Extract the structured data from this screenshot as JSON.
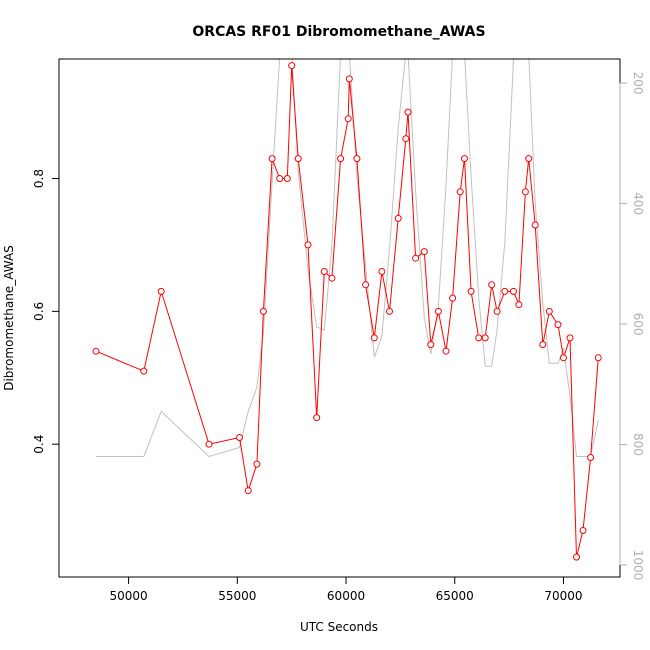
{
  "chart_data": {
    "type": "line",
    "title": "ORCAS RF01 Dibromomethane_AWAS",
    "xlabel": "UTC Seconds",
    "ylabel": "Dibromomethane_AWAS",
    "xlim": [
      46800,
      72600
    ],
    "ylim": [
      0.2,
      0.98
    ],
    "y2lim": [
      160,
      1020
    ],
    "y2_reversed": true,
    "x_ticks": [
      50000,
      55000,
      60000,
      65000,
      70000
    ],
    "y_ticks": [
      0.4,
      0.6,
      0.8
    ],
    "y2_ticks": [
      200,
      400,
      600,
      800,
      1000
    ],
    "colors": {
      "primary": "#ff0000",
      "secondary": "#c0c0c0"
    },
    "series": [
      {
        "color": "#ff0000",
        "marker": "open-circle",
        "points": [
          [
            48500,
            0.54
          ],
          [
            50700,
            0.51
          ],
          [
            51500,
            0.63
          ],
          [
            53700,
            0.4
          ],
          [
            55100,
            0.41
          ],
          [
            55500,
            0.33
          ],
          [
            55900,
            0.37
          ],
          [
            56200,
            0.6
          ],
          [
            56600,
            0.83
          ],
          [
            56950,
            0.8
          ],
          [
            57300,
            0.8
          ],
          [
            57500,
            0.97
          ],
          [
            57800,
            0.83
          ],
          [
            58250,
            0.7
          ],
          [
            58650,
            0.44
          ],
          [
            59000,
            0.66
          ],
          [
            59350,
            0.65
          ],
          [
            59750,
            0.83
          ],
          [
            60100,
            0.89
          ],
          [
            60150,
            0.95
          ],
          [
            60500,
            0.83
          ],
          [
            60900,
            0.64
          ],
          [
            61300,
            0.56
          ],
          [
            61650,
            0.66
          ],
          [
            62000,
            0.6
          ],
          [
            62400,
            0.74
          ],
          [
            62750,
            0.86
          ],
          [
            62850,
            0.9
          ],
          [
            63200,
            0.68
          ],
          [
            63600,
            0.69
          ],
          [
            63900,
            0.55
          ],
          [
            64250,
            0.6
          ],
          [
            64600,
            0.54
          ],
          [
            64900,
            0.62
          ],
          [
            65250,
            0.78
          ],
          [
            65450,
            0.83
          ],
          [
            65750,
            0.63
          ],
          [
            66100,
            0.56
          ],
          [
            66400,
            0.56
          ],
          [
            66700,
            0.64
          ],
          [
            66950,
            0.6
          ],
          [
            67300,
            0.63
          ],
          [
            67700,
            0.63
          ],
          [
            67950,
            0.61
          ],
          [
            68250,
            0.78
          ],
          [
            68400,
            0.83
          ],
          [
            68700,
            0.73
          ],
          [
            69050,
            0.55
          ],
          [
            69350,
            0.6
          ],
          [
            69750,
            0.58
          ],
          [
            70000,
            0.53
          ],
          [
            70300,
            0.56
          ],
          [
            70600,
            0.23
          ],
          [
            70900,
            0.27
          ],
          [
            71250,
            0.38
          ],
          [
            71600,
            0.53
          ]
        ]
      },
      {
        "color": "#c0c0c0",
        "axis": "right",
        "points": [
          [
            48500,
            820
          ],
          [
            50700,
            820
          ],
          [
            51500,
            745
          ],
          [
            53700,
            820
          ],
          [
            55100,
            805
          ],
          [
            55500,
            745
          ],
          [
            55900,
            705
          ],
          [
            56200,
            615
          ],
          [
            56600,
            365
          ],
          [
            56950,
            155
          ],
          [
            57300,
            150
          ],
          [
            57500,
            150
          ],
          [
            57800,
            345
          ],
          [
            58250,
            510
          ],
          [
            58650,
            605
          ],
          [
            59000,
            610
          ],
          [
            59350,
            470
          ],
          [
            59750,
            150
          ],
          [
            60100,
            150
          ],
          [
            60150,
            150
          ],
          [
            60500,
            355
          ],
          [
            60900,
            505
          ],
          [
            61300,
            655
          ],
          [
            61650,
            620
          ],
          [
            62000,
            475
          ],
          [
            62400,
            275
          ],
          [
            62750,
            150
          ],
          [
            62850,
            150
          ],
          [
            63200,
            380
          ],
          [
            63600,
            590
          ],
          [
            63900,
            650
          ],
          [
            64250,
            570
          ],
          [
            64600,
            370
          ],
          [
            64900,
            150
          ],
          [
            65250,
            150
          ],
          [
            65450,
            150
          ],
          [
            65750,
            355
          ],
          [
            66100,
            555
          ],
          [
            66400,
            670
          ],
          [
            66700,
            670
          ],
          [
            66950,
            610
          ],
          [
            67300,
            465
          ],
          [
            67700,
            160
          ],
          [
            67950,
            150
          ],
          [
            68250,
            150
          ],
          [
            68400,
            150
          ],
          [
            68700,
            400
          ],
          [
            69050,
            565
          ],
          [
            69350,
            665
          ],
          [
            69750,
            665
          ],
          [
            70000,
            640
          ],
          [
            70300,
            720
          ],
          [
            70600,
            820
          ],
          [
            70900,
            820
          ],
          [
            71250,
            820
          ],
          [
            71600,
            760
          ]
        ]
      }
    ]
  }
}
